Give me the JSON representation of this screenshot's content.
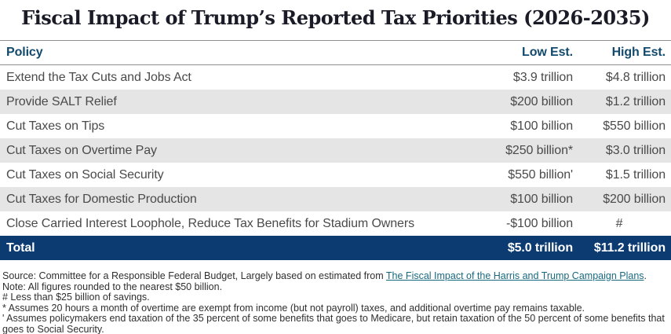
{
  "title": "Fiscal Impact of Trump’s Reported Tax Priorities (2026-2035)",
  "chart_data": {
    "type": "table",
    "title": "Fiscal Impact of Trump’s Reported Tax Priorities (2026-2035)",
    "columns": [
      "Policy",
      "Low Est.",
      "High Est."
    ],
    "rows": [
      {
        "policy": "Extend the Tax Cuts and Jobs Act",
        "low": "$3.9 trillion",
        "high": "$4.8 trillion"
      },
      {
        "policy": "Provide SALT Relief",
        "low": "$200 billion",
        "high": "$1.2 trillion"
      },
      {
        "policy": "Cut Taxes on Tips",
        "low": "$100 billion",
        "high": "$550 billion"
      },
      {
        "policy": "Cut Taxes on Overtime Pay",
        "low": "$250 billion*",
        "high": "$3.0 trillion"
      },
      {
        "policy": "Cut Taxes on Social Security",
        "low": "$550 billion'",
        "high": "$1.5 trillion"
      },
      {
        "policy": "Cut Taxes for Domestic Production",
        "low": "$100 billion",
        "high": "$200 billion"
      },
      {
        "policy": "Close Carried Interest Loophole, Reduce Tax Benefits for Stadium Owners",
        "low": "-$100 billion",
        "high": "#"
      }
    ],
    "total": {
      "policy": "Total",
      "low": "$5.0 trillion",
      "high": "$11.2 trillion"
    }
  },
  "footnotes": {
    "source_prefix": "Source: Committee for a Responsible Federal Budget, Largely based on estimated from ",
    "source_link": "The Fiscal Impact of the Harris and Trump Campaign Plans",
    "source_suffix": ".",
    "note": "Note: All figures rounded to the nearest $50 billion.",
    "hash_note": "# Less than $25 billion of savings.",
    "asterisk_note": "* Assumes 20 hours a month of overtime are exempt from income (but not payroll) taxes, and additional overtime pay remains taxable.",
    "apostrophe_note": "' Assumes policymakers end taxation of the 35 percent of some benefits that goes to Medicare, but retain taxation of the 50 percent of some benefits that goes to Social Security."
  },
  "colors": {
    "header_text": "#124a6d",
    "total_row_bg": "#0c3b72",
    "alt_row_bg": "#e5e5e6",
    "link": "#17697f",
    "title_text": "#1b1b28",
    "body_text": "#4a4a4a"
  }
}
